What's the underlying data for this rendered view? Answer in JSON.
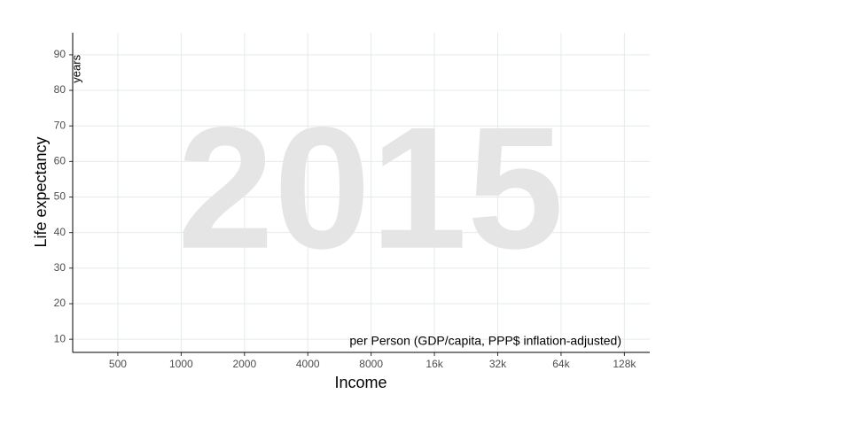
{
  "chart_data": {
    "type": "scatter",
    "watermark": "2015",
    "xlabel": "Income",
    "ylabel": "Life expectancy",
    "y_annotation": "years",
    "x_annotation": "per Person (GDP/capita, PPP$ inflation-adjusted)",
    "xscale": "log",
    "xlim": [
      305,
      169000
    ],
    "xticks": [
      500,
      1000,
      2000,
      4000,
      8000,
      {
        "value": 16000,
        "label": "16k"
      },
      {
        "value": 32000,
        "label": "32k"
      },
      {
        "value": 64000,
        "label": "64k"
      },
      {
        "value": 128000,
        "label": "128k"
      }
    ],
    "ylim": [
      6.3,
      96.2
    ],
    "yticks": [
      10,
      20,
      30,
      40,
      50,
      60,
      70,
      80,
      90
    ],
    "grid": true
  }
}
